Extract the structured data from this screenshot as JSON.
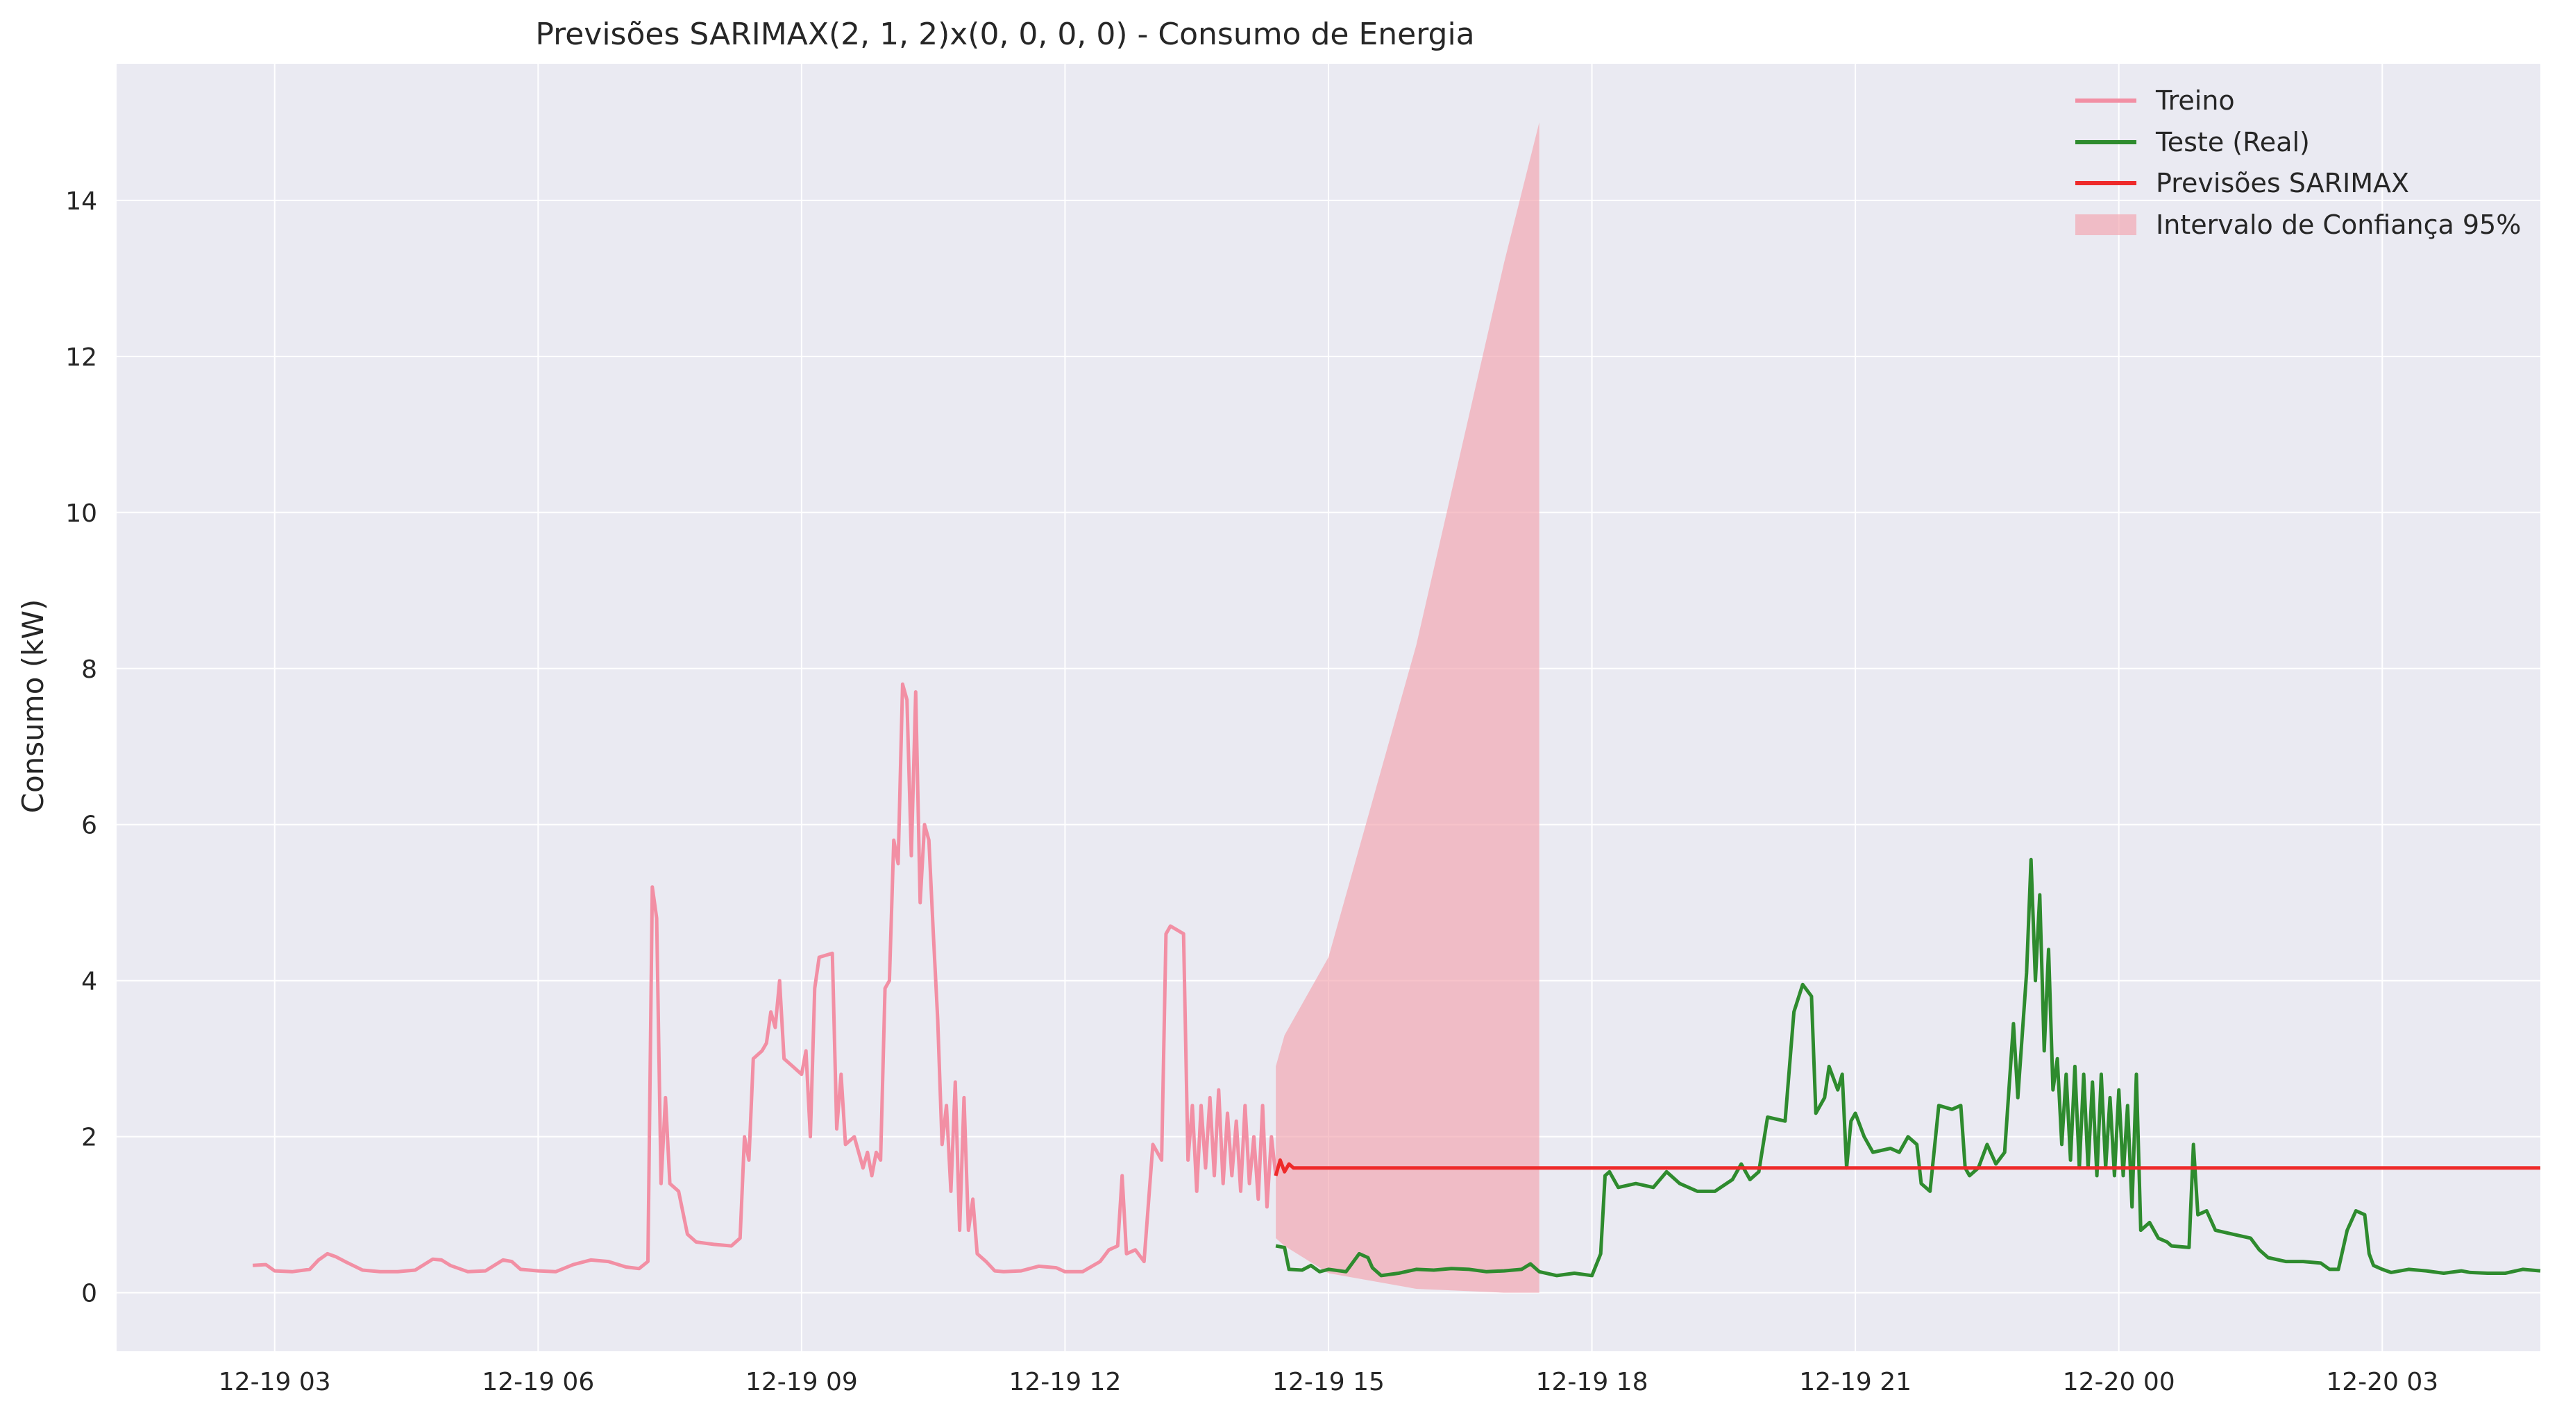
{
  "chart_data": {
    "type": "line",
    "title": "Previsões SARIMAX(2, 1, 2)x(0, 0, 0, 0) - Consumo de Energia",
    "xlabel": "",
    "ylabel": "Consumo (kW)",
    "x_tick_labels": [
      "12-19 03",
      "12-19 06",
      "12-19 09",
      "12-19 12",
      "12-19 15",
      "12-19 18",
      "12-19 21",
      "12-20 00",
      "12-20 03"
    ],
    "y_ticks": [
      0,
      2,
      4,
      6,
      8,
      10,
      12,
      14
    ],
    "x_axis_unit": "hours from 12-19 00:00",
    "xlim": [
      1.2,
      28.8
    ],
    "ylim": [
      -0.75,
      15.75
    ],
    "grid": true,
    "legend_position": "top-right",
    "colors": {
      "train": "#f28fa4",
      "test": "#2e8b2e",
      "forecast": "#ee2a2a",
      "ci": "#f2a3ad",
      "plot_bg": "#eaeaf2",
      "grid": "#ffffff"
    },
    "series": [
      {
        "name": "Treino",
        "points": [
          [
            2.75,
            0.35
          ],
          [
            2.9,
            0.36
          ],
          [
            3.0,
            0.28
          ],
          [
            3.2,
            0.27
          ],
          [
            3.4,
            0.3
          ],
          [
            3.5,
            0.42
          ],
          [
            3.6,
            0.5
          ],
          [
            3.7,
            0.46
          ],
          [
            3.8,
            0.4
          ],
          [
            4.0,
            0.29
          ],
          [
            4.2,
            0.27
          ],
          [
            4.4,
            0.27
          ],
          [
            4.6,
            0.29
          ],
          [
            4.8,
            0.43
          ],
          [
            4.9,
            0.42
          ],
          [
            5.0,
            0.35
          ],
          [
            5.2,
            0.27
          ],
          [
            5.4,
            0.28
          ],
          [
            5.6,
            0.42
          ],
          [
            5.7,
            0.4
          ],
          [
            5.8,
            0.3
          ],
          [
            6.0,
            0.28
          ],
          [
            6.2,
            0.27
          ],
          [
            6.4,
            0.36
          ],
          [
            6.6,
            0.42
          ],
          [
            6.8,
            0.4
          ],
          [
            7.0,
            0.33
          ],
          [
            7.15,
            0.31
          ],
          [
            7.25,
            0.4
          ],
          [
            7.3,
            5.2
          ],
          [
            7.35,
            4.8
          ],
          [
            7.4,
            1.4
          ],
          [
            7.45,
            2.5
          ],
          [
            7.5,
            1.4
          ],
          [
            7.6,
            1.3
          ],
          [
            7.7,
            0.75
          ],
          [
            7.8,
            0.65
          ],
          [
            8.0,
            0.62
          ],
          [
            8.2,
            0.6
          ],
          [
            8.3,
            0.7
          ],
          [
            8.35,
            2.0
          ],
          [
            8.4,
            1.7
          ],
          [
            8.45,
            3.0
          ],
          [
            8.55,
            3.1
          ],
          [
            8.6,
            3.2
          ],
          [
            8.65,
            3.6
          ],
          [
            8.7,
            3.4
          ],
          [
            8.75,
            4.0
          ],
          [
            8.8,
            3.0
          ],
          [
            8.9,
            2.9
          ],
          [
            9.0,
            2.8
          ],
          [
            9.05,
            3.1
          ],
          [
            9.1,
            2.0
          ],
          [
            9.15,
            3.9
          ],
          [
            9.2,
            4.3
          ],
          [
            9.35,
            4.35
          ],
          [
            9.4,
            2.1
          ],
          [
            9.45,
            2.8
          ],
          [
            9.5,
            1.9
          ],
          [
            9.6,
            2.0
          ],
          [
            9.7,
            1.6
          ],
          [
            9.75,
            1.8
          ],
          [
            9.8,
            1.5
          ],
          [
            9.85,
            1.8
          ],
          [
            9.9,
            1.7
          ],
          [
            9.95,
            3.9
          ],
          [
            10.0,
            4.0
          ],
          [
            10.05,
            5.8
          ],
          [
            10.1,
            5.5
          ],
          [
            10.15,
            7.8
          ],
          [
            10.2,
            7.6
          ],
          [
            10.25,
            5.6
          ],
          [
            10.3,
            7.7
          ],
          [
            10.35,
            5.0
          ],
          [
            10.4,
            6.0
          ],
          [
            10.45,
            5.8
          ],
          [
            10.5,
            4.6
          ],
          [
            10.55,
            3.5
          ],
          [
            10.6,
            1.9
          ],
          [
            10.65,
            2.4
          ],
          [
            10.7,
            1.3
          ],
          [
            10.75,
            2.7
          ],
          [
            10.8,
            0.8
          ],
          [
            10.85,
            2.5
          ],
          [
            10.9,
            0.8
          ],
          [
            10.95,
            1.2
          ],
          [
            11.0,
            0.5
          ],
          [
            11.1,
            0.4
          ],
          [
            11.2,
            0.28
          ],
          [
            11.3,
            0.27
          ],
          [
            11.5,
            0.28
          ],
          [
            11.7,
            0.34
          ],
          [
            11.9,
            0.32
          ],
          [
            12.0,
            0.27
          ],
          [
            12.2,
            0.27
          ],
          [
            12.4,
            0.4
          ],
          [
            12.5,
            0.55
          ],
          [
            12.6,
            0.6
          ],
          [
            12.65,
            1.5
          ],
          [
            12.7,
            0.5
          ],
          [
            12.8,
            0.55
          ],
          [
            12.9,
            0.4
          ],
          [
            13.0,
            1.9
          ],
          [
            13.1,
            1.7
          ],
          [
            13.15,
            4.6
          ],
          [
            13.2,
            4.7
          ],
          [
            13.35,
            4.6
          ],
          [
            13.4,
            1.7
          ],
          [
            13.45,
            2.4
          ],
          [
            13.5,
            1.3
          ],
          [
            13.55,
            2.4
          ],
          [
            13.6,
            1.6
          ],
          [
            13.65,
            2.5
          ],
          [
            13.7,
            1.5
          ],
          [
            13.75,
            2.6
          ],
          [
            13.8,
            1.4
          ],
          [
            13.85,
            2.3
          ],
          [
            13.9,
            1.5
          ],
          [
            13.95,
            2.2
          ],
          [
            14.0,
            1.3
          ],
          [
            14.05,
            2.4
          ],
          [
            14.1,
            1.4
          ],
          [
            14.15,
            2.0
          ],
          [
            14.2,
            1.2
          ],
          [
            14.25,
            2.4
          ],
          [
            14.3,
            1.1
          ],
          [
            14.35,
            2.0
          ],
          [
            14.4,
            1.5
          ]
        ]
      },
      {
        "name": "Teste (Real)",
        "points": [
          [
            14.4,
            0.6
          ],
          [
            14.5,
            0.58
          ],
          [
            14.55,
            0.3
          ],
          [
            14.7,
            0.29
          ],
          [
            14.8,
            0.35
          ],
          [
            14.9,
            0.27
          ],
          [
            15.0,
            0.3
          ],
          [
            15.2,
            0.27
          ],
          [
            15.35,
            0.5
          ],
          [
            15.45,
            0.45
          ],
          [
            15.5,
            0.32
          ],
          [
            15.6,
            0.22
          ],
          [
            15.8,
            0.25
          ],
          [
            16.0,
            0.3
          ],
          [
            16.2,
            0.29
          ],
          [
            16.4,
            0.31
          ],
          [
            16.6,
            0.3
          ],
          [
            16.8,
            0.27
          ],
          [
            17.0,
            0.28
          ],
          [
            17.2,
            0.3
          ],
          [
            17.3,
            0.37
          ],
          [
            17.4,
            0.27
          ],
          [
            17.6,
            0.22
          ],
          [
            17.8,
            0.25
          ],
          [
            18.0,
            0.22
          ],
          [
            18.1,
            0.5
          ],
          [
            18.15,
            1.5
          ],
          [
            18.2,
            1.55
          ],
          [
            18.3,
            1.35
          ],
          [
            18.5,
            1.4
          ],
          [
            18.7,
            1.35
          ],
          [
            18.85,
            1.55
          ],
          [
            19.0,
            1.4
          ],
          [
            19.2,
            1.3
          ],
          [
            19.4,
            1.3
          ],
          [
            19.6,
            1.45
          ],
          [
            19.7,
            1.65
          ],
          [
            19.8,
            1.45
          ],
          [
            19.9,
            1.55
          ],
          [
            20.0,
            2.25
          ],
          [
            20.2,
            2.2
          ],
          [
            20.3,
            3.6
          ],
          [
            20.4,
            3.95
          ],
          [
            20.5,
            3.8
          ],
          [
            20.55,
            2.3
          ],
          [
            20.65,
            2.5
          ],
          [
            20.7,
            2.9
          ],
          [
            20.8,
            2.6
          ],
          [
            20.85,
            2.8
          ],
          [
            20.9,
            1.6
          ],
          [
            20.95,
            2.2
          ],
          [
            21.0,
            2.3
          ],
          [
            21.1,
            2.0
          ],
          [
            21.2,
            1.8
          ],
          [
            21.4,
            1.85
          ],
          [
            21.5,
            1.8
          ],
          [
            21.6,
            2.0
          ],
          [
            21.7,
            1.9
          ],
          [
            21.75,
            1.4
          ],
          [
            21.85,
            1.3
          ],
          [
            21.95,
            2.4
          ],
          [
            22.1,
            2.35
          ],
          [
            22.2,
            2.4
          ],
          [
            22.25,
            1.6
          ],
          [
            22.3,
            1.5
          ],
          [
            22.4,
            1.6
          ],
          [
            22.5,
            1.9
          ],
          [
            22.6,
            1.65
          ],
          [
            22.7,
            1.8
          ],
          [
            22.8,
            3.45
          ],
          [
            22.85,
            2.5
          ],
          [
            22.9,
            3.3
          ],
          [
            22.95,
            4.1
          ],
          [
            23.0,
            5.55
          ],
          [
            23.05,
            4.0
          ],
          [
            23.1,
            5.1
          ],
          [
            23.15,
            3.1
          ],
          [
            23.2,
            4.4
          ],
          [
            23.25,
            2.6
          ],
          [
            23.3,
            3.0
          ],
          [
            23.35,
            1.9
          ],
          [
            23.4,
            2.8
          ],
          [
            23.45,
            1.7
          ],
          [
            23.5,
            2.9
          ],
          [
            23.55,
            1.6
          ],
          [
            23.6,
            2.8
          ],
          [
            23.65,
            1.6
          ],
          [
            23.7,
            2.7
          ],
          [
            23.75,
            1.5
          ],
          [
            23.8,
            2.8
          ],
          [
            23.85,
            1.6
          ],
          [
            23.9,
            2.5
          ],
          [
            23.95,
            1.5
          ],
          [
            24.0,
            2.6
          ],
          [
            24.05,
            1.5
          ],
          [
            24.1,
            2.4
          ],
          [
            24.15,
            1.1
          ],
          [
            24.2,
            2.8
          ],
          [
            24.25,
            0.8
          ],
          [
            24.35,
            0.9
          ],
          [
            24.45,
            0.7
          ],
          [
            24.55,
            0.65
          ],
          [
            24.6,
            0.6
          ],
          [
            24.8,
            0.58
          ],
          [
            24.85,
            1.9
          ],
          [
            24.9,
            1.0
          ],
          [
            25.0,
            1.05
          ],
          [
            25.1,
            0.8
          ],
          [
            25.3,
            0.75
          ],
          [
            25.5,
            0.7
          ],
          [
            25.6,
            0.55
          ],
          [
            25.7,
            0.45
          ],
          [
            25.9,
            0.4
          ],
          [
            26.1,
            0.4
          ],
          [
            26.3,
            0.38
          ],
          [
            26.4,
            0.3
          ],
          [
            26.5,
            0.3
          ],
          [
            26.6,
            0.8
          ],
          [
            26.7,
            1.05
          ],
          [
            26.8,
            1.0
          ],
          [
            26.85,
            0.5
          ],
          [
            26.9,
            0.35
          ],
          [
            27.0,
            0.3
          ],
          [
            27.1,
            0.26
          ],
          [
            27.3,
            0.3
          ],
          [
            27.5,
            0.28
          ],
          [
            27.7,
            0.25
          ],
          [
            27.9,
            0.28
          ],
          [
            28.0,
            0.26
          ],
          [
            28.2,
            0.25
          ],
          [
            28.4,
            0.25
          ],
          [
            28.6,
            0.3
          ],
          [
            28.8,
            0.28
          ]
        ]
      },
      {
        "name": "Previsões SARIMAX",
        "points": [
          [
            14.4,
            1.5
          ],
          [
            14.45,
            1.7
          ],
          [
            14.5,
            1.55
          ],
          [
            14.55,
            1.65
          ],
          [
            14.6,
            1.6
          ],
          [
            28.8,
            1.6
          ]
        ]
      }
    ],
    "confidence_interval": {
      "name": "Intervalo de Confiança 95%",
      "x": [
        14.4,
        14.5,
        15.0,
        16.0,
        17.0,
        17.4
      ],
      "upper": [
        2.9,
        3.3,
        4.3,
        8.3,
        13.2,
        15.0
      ],
      "lower": [
        0.7,
        0.6,
        0.25,
        0.05,
        0.0,
        0.0
      ]
    }
  }
}
